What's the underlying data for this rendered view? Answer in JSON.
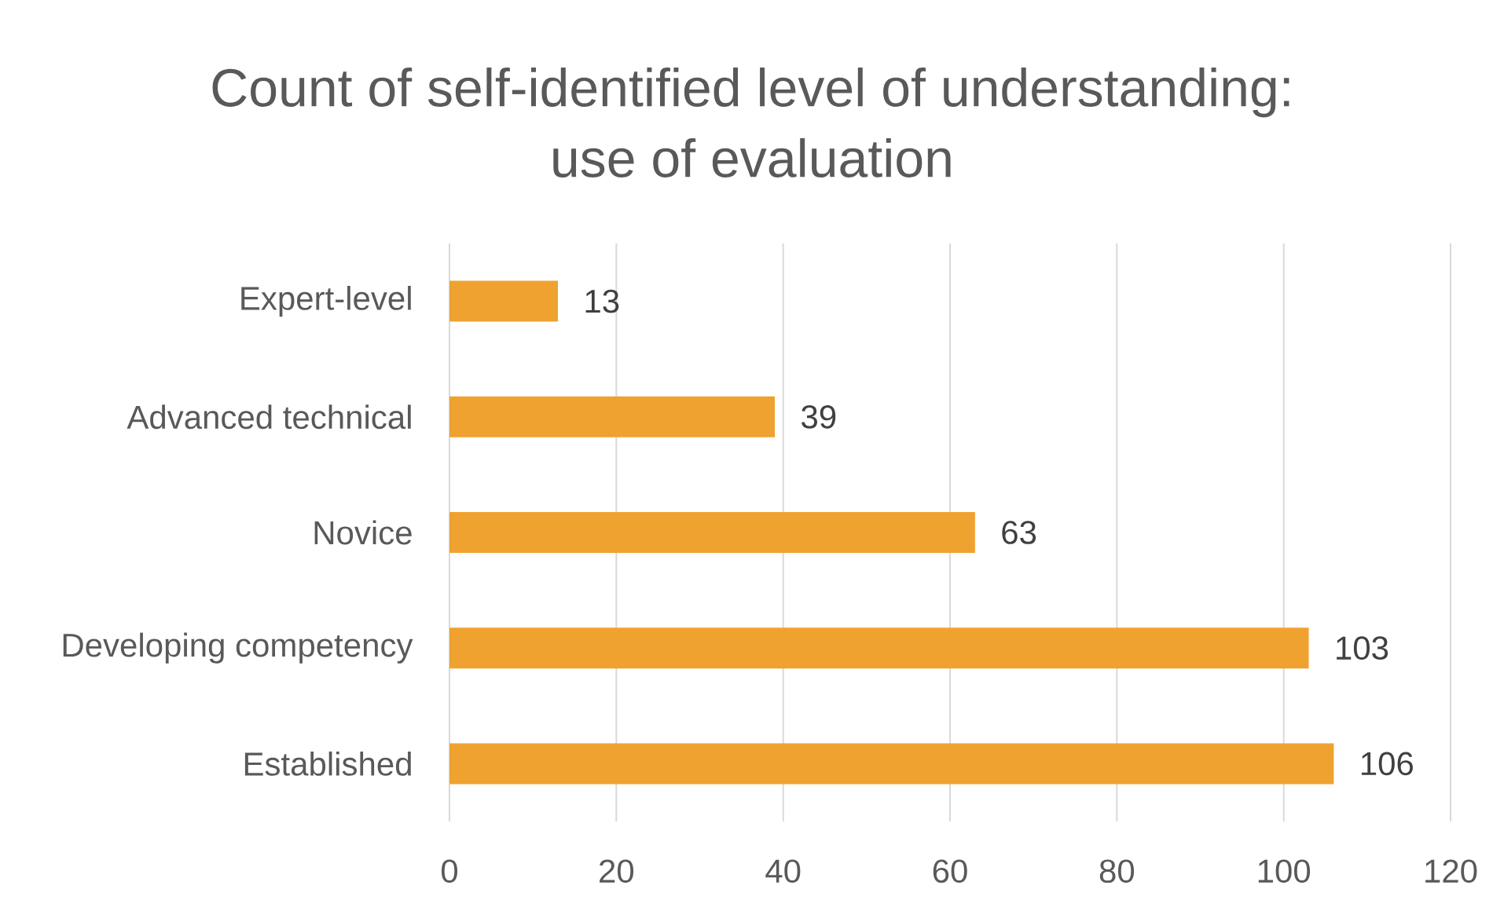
{
  "chart_data": {
    "type": "bar",
    "orientation": "horizontal",
    "title": "Count of self-identified level of understanding: use of evaluation",
    "categories": [
      "Expert-level",
      "Advanced technical",
      "Novice",
      "Developing competency",
      "Established"
    ],
    "values": [
      13,
      39,
      63,
      103,
      106
    ],
    "color": "#efa22f",
    "xlim": [
      0,
      120
    ],
    "xticks": [
      0,
      20,
      40,
      60,
      80,
      100,
      120
    ],
    "grid": "x",
    "data_labels": true
  }
}
